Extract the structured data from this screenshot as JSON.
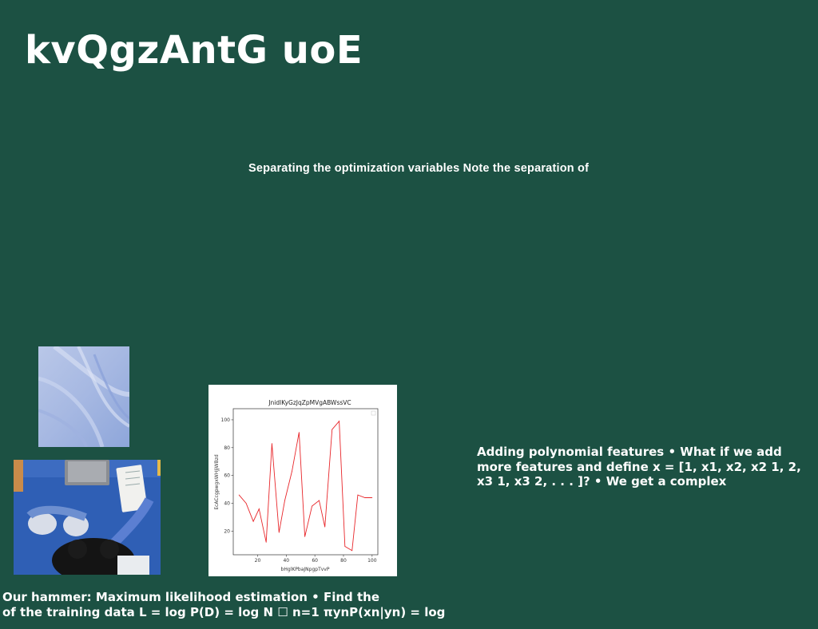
{
  "slide": {
    "title": "kvQgzAntG uoE",
    "subtitle": "Separating the optimization variables Note the separation of",
    "right_text": "Adding polynomial features • What if we add more features and define x = [1, x1, x2, x2 1, 2, x3 1, x3 2, . . . ]? • We get a complex",
    "bottom_text": {
      "line1": "Our hammer: Maximum likelihood estimation • Find the",
      "line2": "of the training data L = log P(D) = log N ☐ n=1 πynP(xn|yn) = log"
    }
  },
  "images": {
    "abstract": "abstract-blue-swirl-image",
    "photo": "person-working-at-desk-photo"
  },
  "chart_data": {
    "type": "line",
    "title": "JnidlKyGzJqZpMVgABWssVC",
    "xlabel": "bHglKPbaJNpgpTvvP",
    "ylabel": "EcACcgpwgxWHJjWBzd",
    "xlim": [
      3,
      104
    ],
    "ylim": [
      3,
      108
    ],
    "xticks": [
      20,
      40,
      60,
      80,
      100
    ],
    "yticks": [
      20,
      40,
      60,
      80,
      100
    ],
    "grid": false,
    "legend": "top-right",
    "series": [
      {
        "color": "#e8262a",
        "x": [
          7,
          12,
          17,
          21,
          26,
          30,
          35,
          39,
          44,
          49,
          53,
          58,
          63,
          67,
          72,
          77,
          81,
          86,
          90,
          95,
          100
        ],
        "values": [
          46,
          40,
          27,
          36,
          12,
          83,
          19,
          42,
          63,
          91,
          16,
          38,
          42,
          23,
          93,
          99,
          9,
          6,
          46,
          44,
          44
        ]
      }
    ]
  }
}
